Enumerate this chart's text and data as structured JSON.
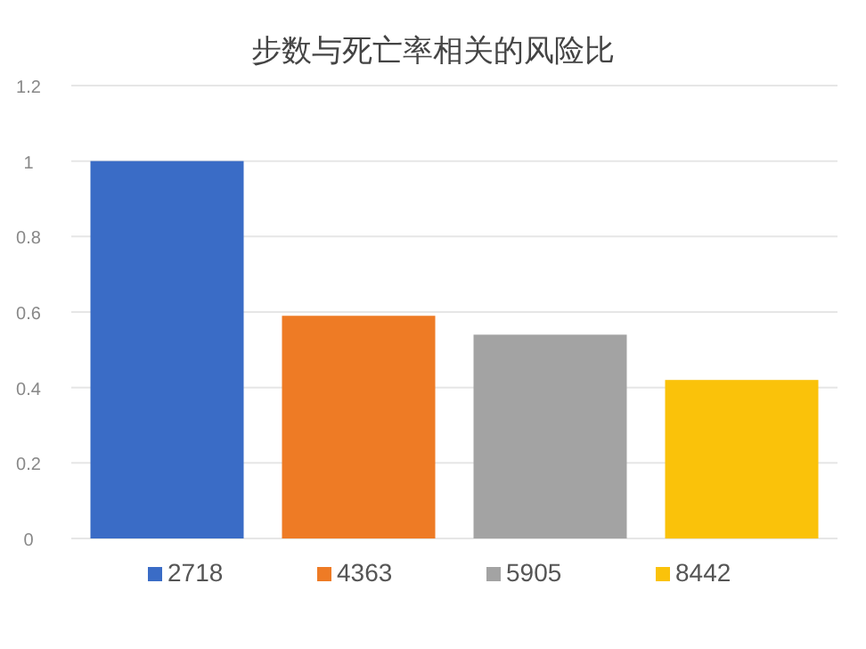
{
  "chart_data": {
    "type": "bar",
    "title": "步数与死亡率相关的风险比",
    "categories": [
      null
    ],
    "series": [
      {
        "name": "2718",
        "color": "#3a6cc6",
        "values": [
          1.0
        ]
      },
      {
        "name": "4363",
        "color": "#ee7b25",
        "values": [
          0.59
        ]
      },
      {
        "name": "5905",
        "color": "#a3a3a3",
        "values": [
          0.54
        ]
      },
      {
        "name": "8442",
        "color": "#fac20a",
        "values": [
          0.42
        ]
      }
    ],
    "ylim": [
      0,
      1.2
    ],
    "yticks": [
      0,
      0.2,
      0.4,
      0.6,
      0.8,
      1,
      1.2
    ],
    "grid": "y",
    "legend": "bottom"
  }
}
